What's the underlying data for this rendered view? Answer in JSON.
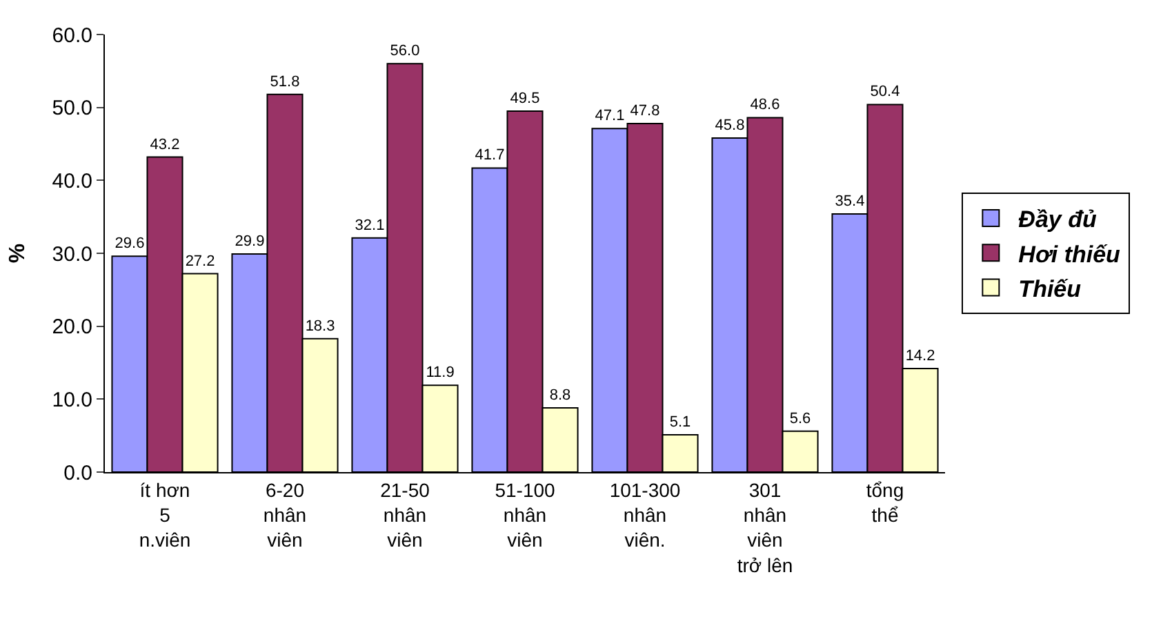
{
  "chart_data": {
    "type": "bar",
    "ylabel": "%",
    "categories": [
      "ít hơn 5 n.viên",
      "6-20 nhân viên",
      "21-50 nhân viên",
      "51-100 nhân viên",
      "101-300 nhân viên.",
      "301 nhân viên trở lên",
      "tổng thể"
    ],
    "series": [
      {
        "name": "Đầy đủ",
        "color": "#9999ff",
        "values": [
          29.6,
          29.9,
          32.1,
          41.7,
          47.1,
          45.8,
          35.4
        ],
        "value_labels": [
          "29.6",
          "29.9",
          "32.1",
          "41.7",
          "47.1",
          "45.8",
          "35.4"
        ]
      },
      {
        "name": "Hơi thiếu",
        "color": "#993366",
        "values": [
          43.2,
          51.8,
          56.0,
          49.5,
          47.8,
          48.6,
          50.4
        ],
        "value_labels": [
          "43.2",
          "51.8",
          "56.0",
          "49.5",
          "47.8",
          "48.6",
          "50.4"
        ]
      },
      {
        "name": "Thiếu",
        "color": "#ffffcc",
        "values": [
          27.2,
          18.3,
          11.9,
          8.8,
          5.1,
          5.6,
          14.2
        ],
        "value_labels": [
          "27.2",
          "18.3",
          "11.9",
          "8.8",
          "5.1",
          "5.6",
          "14.2"
        ]
      }
    ],
    "ylim": [
      0,
      60
    ],
    "yticks": [
      {
        "value": 0,
        "label": "0.0"
      },
      {
        "value": 10,
        "label": "10.0"
      },
      {
        "value": 20,
        "label": "20.0"
      },
      {
        "value": 30,
        "label": "30.0"
      },
      {
        "value": 40,
        "label": "40.0"
      },
      {
        "value": 50,
        "label": "50.0"
      },
      {
        "value": 60,
        "label": "60.0"
      }
    ],
    "legend": "right"
  }
}
